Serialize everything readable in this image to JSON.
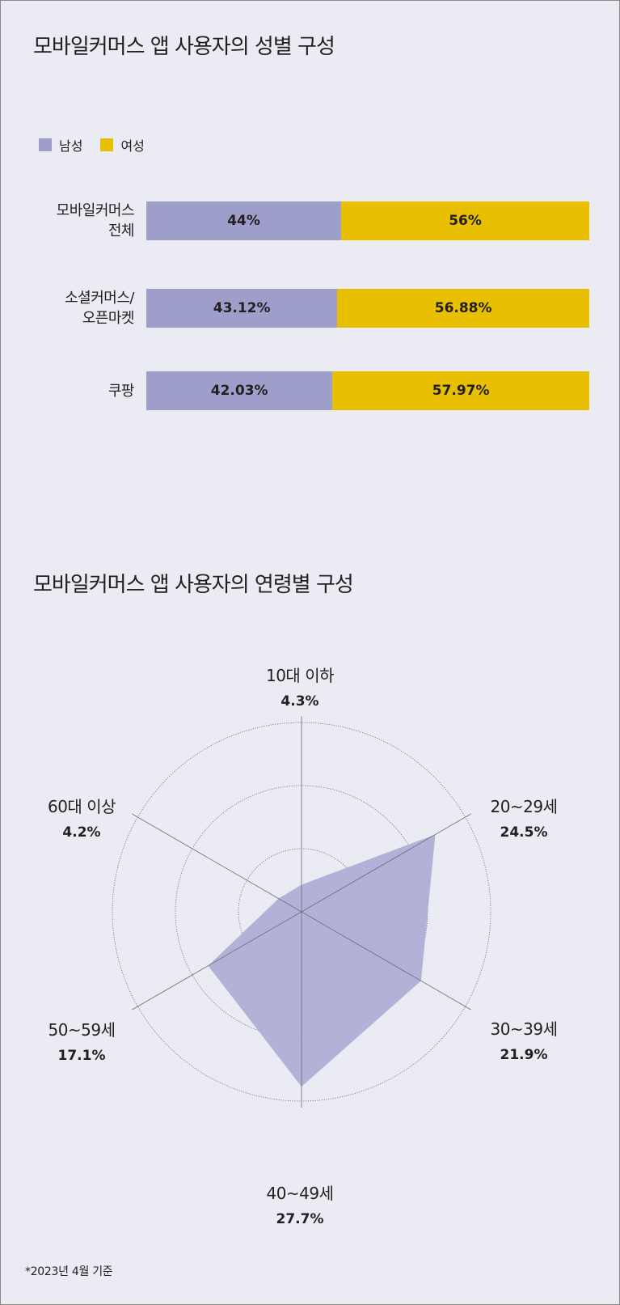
{
  "colors": {
    "background": "#ebebf3",
    "male": "#9e9ecb",
    "female": "#e9c001",
    "radar_fill": "#acacd6",
    "grid": "#6d6d75"
  },
  "chart_data": [
    {
      "type": "bar",
      "orientation": "horizontal",
      "stacked": true,
      "percent": true,
      "title": "모바일커머스 앱 사용자의 성별 구성",
      "legend": {
        "position": "top-left"
      },
      "categories": [
        [
          "모바일커머스",
          "전체"
        ],
        [
          "소셜커머스/",
          "오픈마켓"
        ],
        [
          "쿠팡"
        ]
      ],
      "series": [
        {
          "name": "남성",
          "values": [
            44,
            43.12,
            42.03
          ],
          "labels": [
            "44%",
            "43.12%",
            "42.03%"
          ]
        },
        {
          "name": "여성",
          "values": [
            56,
            56.88,
            57.97
          ],
          "labels": [
            "56%",
            "56.88%",
            "57.97%"
          ]
        }
      ],
      "xlim": [
        0,
        100
      ]
    },
    {
      "type": "radar",
      "title": "모바일커머스 앱 사용자의 연령별 구성",
      "axes": [
        {
          "name": "10대 이하",
          "value": 4.3,
          "label": "4.3%"
        },
        {
          "name": "20~29세",
          "value": 24.5,
          "label": "24.5%"
        },
        {
          "name": "30~39세",
          "value": 21.9,
          "label": "21.9%"
        },
        {
          "name": "40~49세",
          "value": 27.7,
          "label": "27.7%"
        },
        {
          "name": "50~59세",
          "value": 17.1,
          "label": "17.1%"
        },
        {
          "name": "60대 이상",
          "value": 4.2,
          "label": "4.2%"
        }
      ],
      "rmax": 30,
      "grid_rings": [
        10,
        20,
        30
      ]
    }
  ],
  "footnote": "*2023년 4월 기준"
}
